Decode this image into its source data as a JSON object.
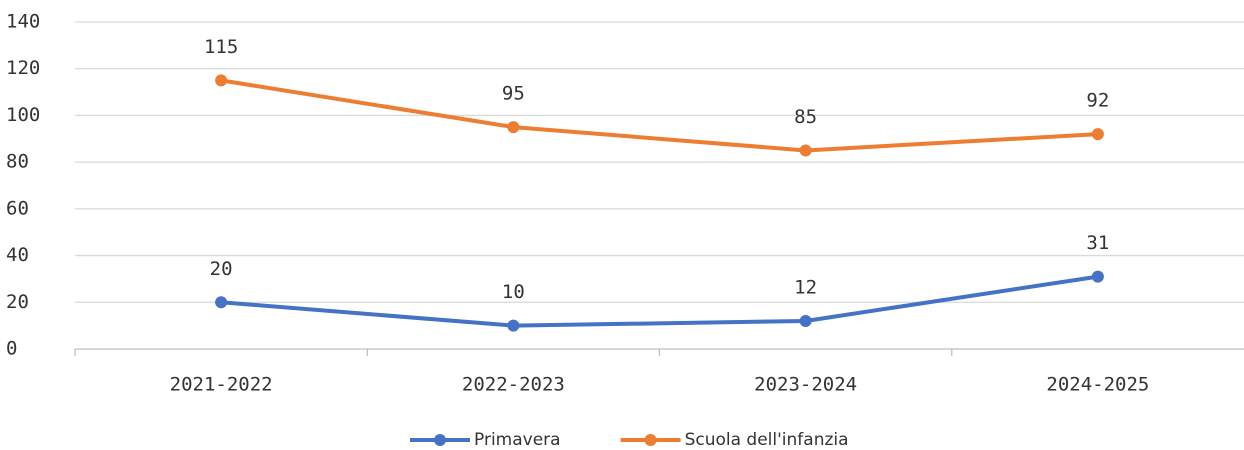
{
  "chart_data": {
    "type": "line",
    "categories": [
      "2021-2022",
      "2022-2023",
      "2023-2024",
      "2024-2025"
    ],
    "series": [
      {
        "name": "Primavera",
        "color": "#4472c4",
        "values": [
          20,
          10,
          12,
          31
        ]
      },
      {
        "name": "Scuola dell'infanzia",
        "color": "#ed7d31",
        "values": [
          115,
          95,
          85,
          92
        ]
      }
    ],
    "ylim": [
      0,
      140
    ],
    "yticks": [
      0,
      20,
      40,
      60,
      80,
      100,
      120,
      140
    ],
    "grid": true,
    "legend": "bottom"
  }
}
